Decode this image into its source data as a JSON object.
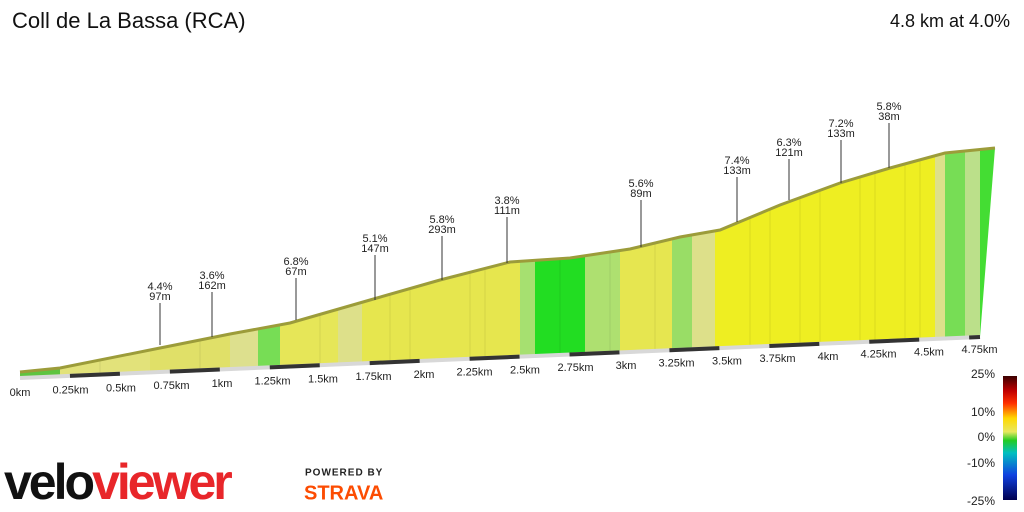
{
  "title": "Coll de La Bassa (RCA)",
  "summary": "4.8 km at 4.0%",
  "annotations": [
    {
      "grade": "4.4%",
      "length": "97m"
    },
    {
      "grade": "3.6%",
      "length": "162m"
    },
    {
      "grade": "6.8%",
      "length": "67m"
    },
    {
      "grade": "5.1%",
      "length": "147m"
    },
    {
      "grade": "5.8%",
      "length": "293m"
    },
    {
      "grade": "3.8%",
      "length": "111m"
    },
    {
      "grade": "5.6%",
      "length": "89m"
    },
    {
      "grade": "7.4%",
      "length": "133m"
    },
    {
      "grade": "6.3%",
      "length": "121m"
    },
    {
      "grade": "7.2%",
      "length": "133m"
    },
    {
      "grade": "5.8%",
      "length": "38m"
    }
  ],
  "distance_labels": [
    "0km",
    "0.25km",
    "0.5km",
    "0.75km",
    "1km",
    "1.25km",
    "1.5km",
    "1.75km",
    "2km",
    "2.25km",
    "2.5km",
    "2.75km",
    "3km",
    "3.25km",
    "3.5km",
    "3.75km",
    "4km",
    "4.25km",
    "4.5km",
    "4.75km"
  ],
  "legend": {
    "labels": [
      "25%",
      "10%",
      "0%",
      "-10%",
      "-25%"
    ]
  },
  "brand": {
    "velo": "velo",
    "viewer": "viewer",
    "powered_by": "POWERED BY",
    "strava": "STRAVA"
  }
}
